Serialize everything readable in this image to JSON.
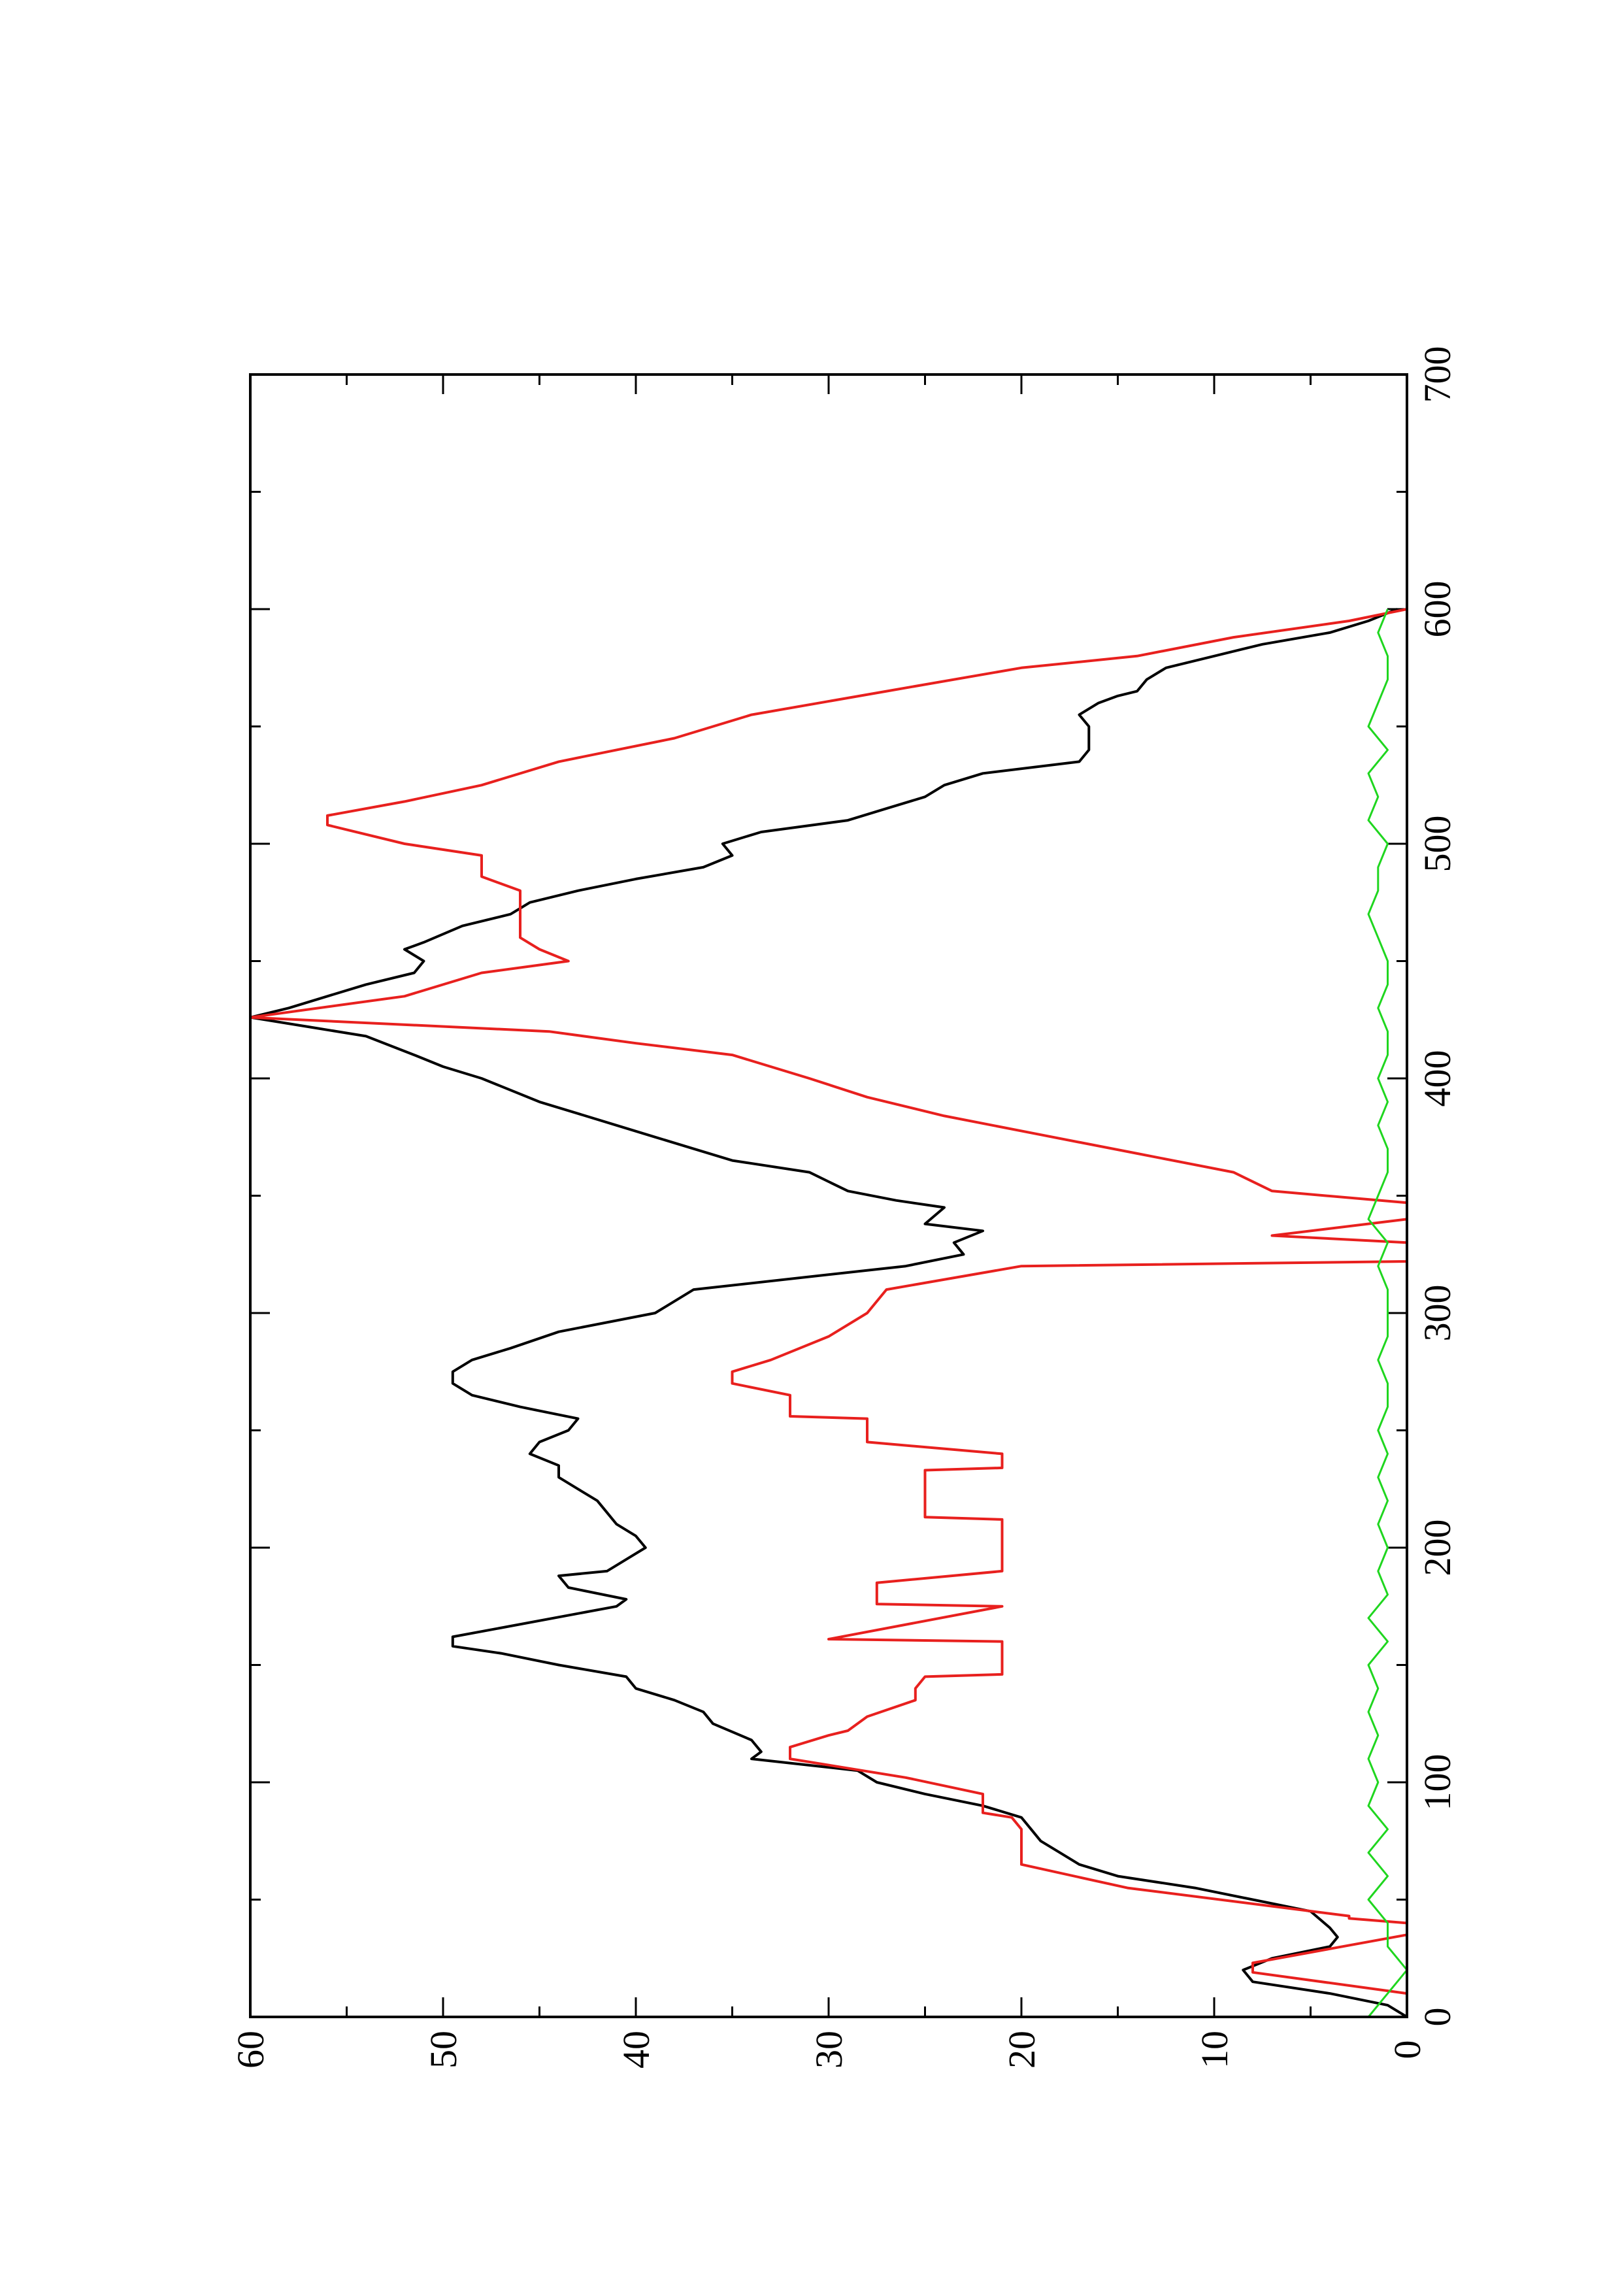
{
  "chart_data": {
    "type": "line",
    "rotated": "90deg counter-clockwise (x axis runs bottom-to-top)",
    "xlim": [
      0,
      700
    ],
    "ylim": [
      0,
      60
    ],
    "x_ticks": [
      0,
      100,
      200,
      300,
      400,
      500,
      600,
      700
    ],
    "y_ticks": [
      0,
      10,
      20,
      30,
      40,
      50,
      60
    ],
    "x_tick_labels": [
      "0",
      "100",
      "200",
      "300",
      "400",
      "500",
      "600",
      "700"
    ],
    "y_tick_labels": [
      "0",
      "10",
      "20",
      "30",
      "40",
      "50",
      "60"
    ],
    "grid": false,
    "legend": "none",
    "series": [
      {
        "color": "#000000",
        "points": [
          [
            0,
            0
          ],
          [
            5,
            1
          ],
          [
            10,
            4
          ],
          [
            15,
            8
          ],
          [
            20,
            8.5
          ],
          [
            25,
            7
          ],
          [
            30,
            4
          ],
          [
            34,
            3.6
          ],
          [
            38,
            4
          ],
          [
            45,
            5
          ],
          [
            50,
            8
          ],
          [
            55,
            11
          ],
          [
            60,
            15
          ],
          [
            65,
            17
          ],
          [
            70,
            18
          ],
          [
            75,
            19
          ],
          [
            80,
            19.5
          ],
          [
            85,
            20
          ],
          [
            90,
            22
          ],
          [
            95,
            25
          ],
          [
            100,
            27.5
          ],
          [
            105,
            28.5
          ],
          [
            110,
            34
          ],
          [
            113,
            33.5
          ],
          [
            118,
            34
          ],
          [
            125,
            36
          ],
          [
            130,
            36.5
          ],
          [
            135,
            38
          ],
          [
            140,
            40
          ],
          [
            145,
            40.5
          ],
          [
            150,
            44
          ],
          [
            155,
            47
          ],
          [
            158,
            49.5
          ],
          [
            162,
            49.5
          ],
          [
            175,
            41
          ],
          [
            178,
            40.5
          ],
          [
            183,
            43.5
          ],
          [
            188,
            44
          ],
          [
            190,
            41.5
          ],
          [
            195,
            40.5
          ],
          [
            200,
            39.5
          ],
          [
            205,
            40
          ],
          [
            210,
            41
          ],
          [
            215,
            41.5
          ],
          [
            220,
            42
          ],
          [
            225,
            43
          ],
          [
            230,
            44
          ],
          [
            235,
            44
          ],
          [
            240,
            45.5
          ],
          [
            245,
            45
          ],
          [
            250,
            43.5
          ],
          [
            255,
            43
          ],
          [
            260,
            46
          ],
          [
            265,
            48.5
          ],
          [
            270,
            49.5
          ],
          [
            275,
            49.5
          ],
          [
            280,
            48.5
          ],
          [
            285,
            46.5
          ],
          [
            292,
            44
          ],
          [
            300,
            39
          ],
          [
            310,
            37
          ],
          [
            320,
            26
          ],
          [
            325,
            23
          ],
          [
            330,
            23.5
          ],
          [
            335,
            22
          ],
          [
            338,
            25
          ],
          [
            345,
            24
          ],
          [
            348,
            26.5
          ],
          [
            352,
            29
          ],
          [
            356,
            30
          ],
          [
            360,
            31
          ],
          [
            365,
            35
          ],
          [
            370,
            37
          ],
          [
            375,
            39
          ],
          [
            380,
            41
          ],
          [
            385,
            43
          ],
          [
            390,
            45
          ],
          [
            400,
            48
          ],
          [
            405,
            50
          ],
          [
            410,
            51.5
          ],
          [
            418,
            54
          ],
          [
            422,
            57
          ],
          [
            426,
            60
          ],
          [
            430,
            58
          ],
          [
            435,
            56
          ],
          [
            440,
            54
          ],
          [
            445,
            51.5
          ],
          [
            450,
            51
          ],
          [
            455,
            52
          ],
          [
            458,
            51
          ],
          [
            465,
            49
          ],
          [
            470,
            46.5
          ],
          [
            475,
            45.5
          ],
          [
            480,
            43
          ],
          [
            485,
            40
          ],
          [
            490,
            36.5
          ],
          [
            495,
            35
          ],
          [
            500,
            35.5
          ],
          [
            505,
            33.5
          ],
          [
            510,
            29
          ],
          [
            515,
            27
          ],
          [
            520,
            25
          ],
          [
            525,
            24
          ],
          [
            530,
            22
          ],
          [
            535,
            17
          ],
          [
            540,
            16.5
          ],
          [
            545,
            16.5
          ],
          [
            550,
            16.5
          ],
          [
            555,
            17
          ],
          [
            560,
            16
          ],
          [
            563,
            15
          ],
          [
            565,
            14
          ],
          [
            570,
            13.5
          ],
          [
            575,
            12.5
          ],
          [
            580,
            10
          ],
          [
            585,
            7.5
          ],
          [
            590,
            4
          ],
          [
            595,
            2
          ],
          [
            600,
            0.5
          ]
        ]
      },
      {
        "color": "#e8201e",
        "points": [
          [
            0,
            0
          ],
          [
            10,
            0
          ],
          [
            19,
            8
          ],
          [
            23,
            8
          ],
          [
            35,
            0
          ],
          [
            40,
            0
          ],
          [
            42,
            3
          ],
          [
            43,
            3
          ],
          [
            55,
            14.5
          ],
          [
            65,
            20
          ],
          [
            80,
            20
          ],
          [
            85,
            20.5
          ],
          [
            87,
            22
          ],
          [
            95,
            22
          ],
          [
            102,
            26
          ],
          [
            110,
            32
          ],
          [
            115,
            32
          ],
          [
            120,
            30
          ],
          [
            122,
            29
          ],
          [
            128,
            28
          ],
          [
            135,
            25.5
          ],
          [
            140,
            25.5
          ],
          [
            145,
            25
          ],
          [
            146,
            21
          ],
          [
            160,
            21
          ],
          [
            161,
            30
          ],
          [
            175,
            21
          ],
          [
            176,
            27.5
          ],
          [
            185,
            27.5
          ],
          [
            190,
            21
          ],
          [
            212,
            21
          ],
          [
            213,
            25
          ],
          [
            233,
            25
          ],
          [
            234,
            21
          ],
          [
            240,
            21
          ],
          [
            245,
            28
          ],
          [
            255,
            28
          ],
          [
            256,
            32
          ],
          [
            265,
            32
          ],
          [
            270,
            35
          ],
          [
            275,
            35
          ],
          [
            280,
            33
          ],
          [
            290,
            30
          ],
          [
            300,
            28
          ],
          [
            310,
            27
          ],
          [
            320,
            20
          ],
          [
            322,
            0
          ],
          [
            330,
            0
          ],
          [
            333,
            7
          ],
          [
            340,
            0
          ],
          [
            347,
            0
          ],
          [
            352,
            7
          ],
          [
            360,
            9
          ],
          [
            368,
            14
          ],
          [
            376,
            19
          ],
          [
            384,
            24
          ],
          [
            392,
            28
          ],
          [
            400,
            31
          ],
          [
            410,
            35
          ],
          [
            415,
            40
          ],
          [
            420,
            44.5
          ],
          [
            426,
            60
          ],
          [
            435,
            52
          ],
          [
            445,
            48
          ],
          [
            450,
            43.5
          ],
          [
            455,
            45
          ],
          [
            460,
            46
          ],
          [
            465,
            46
          ],
          [
            472,
            46
          ],
          [
            480,
            46
          ],
          [
            486,
            48
          ],
          [
            495,
            48
          ],
          [
            500,
            52
          ],
          [
            508,
            56
          ],
          [
            512,
            56
          ],
          [
            518,
            52
          ],
          [
            525,
            48
          ],
          [
            535,
            44
          ],
          [
            545,
            38
          ],
          [
            555,
            34
          ],
          [
            565,
            27
          ],
          [
            575,
            20
          ],
          [
            580,
            14
          ],
          [
            588,
            9
          ],
          [
            595,
            3
          ],
          [
            600,
            0
          ]
        ]
      },
      {
        "color": "#1fd61f",
        "points": [
          [
            0,
            2
          ],
          [
            10,
            1
          ],
          [
            20,
            0
          ],
          [
            30,
            1
          ],
          [
            40,
            1
          ],
          [
            50,
            2
          ],
          [
            60,
            1
          ],
          [
            70,
            2
          ],
          [
            80,
            1
          ],
          [
            90,
            2
          ],
          [
            100,
            1.5
          ],
          [
            110,
            2
          ],
          [
            120,
            1.5
          ],
          [
            130,
            2
          ],
          [
            140,
            1.5
          ],
          [
            150,
            2
          ],
          [
            160,
            1
          ],
          [
            170,
            2
          ],
          [
            180,
            1
          ],
          [
            190,
            1.5
          ],
          [
            200,
            1
          ],
          [
            210,
            1.5
          ],
          [
            220,
            1
          ],
          [
            230,
            1.5
          ],
          [
            240,
            1
          ],
          [
            250,
            1.5
          ],
          [
            260,
            1
          ],
          [
            270,
            1
          ],
          [
            280,
            1.5
          ],
          [
            290,
            1
          ],
          [
            300,
            1
          ],
          [
            310,
            1
          ],
          [
            320,
            1.5
          ],
          [
            330,
            1
          ],
          [
            340,
            2
          ],
          [
            350,
            1.5
          ],
          [
            360,
            1
          ],
          [
            370,
            1
          ],
          [
            380,
            1.5
          ],
          [
            390,
            1
          ],
          [
            400,
            1.5
          ],
          [
            410,
            1
          ],
          [
            420,
            1
          ],
          [
            430,
            1.5
          ],
          [
            440,
            1
          ],
          [
            450,
            1
          ],
          [
            460,
            1.5
          ],
          [
            470,
            2
          ],
          [
            480,
            1.5
          ],
          [
            490,
            1.5
          ],
          [
            500,
            1
          ],
          [
            510,
            2
          ],
          [
            520,
            1.5
          ],
          [
            530,
            2
          ],
          [
            540,
            1
          ],
          [
            550,
            2
          ],
          [
            560,
            1.5
          ],
          [
            570,
            1
          ],
          [
            580,
            1
          ],
          [
            590,
            1.5
          ],
          [
            600,
            1
          ]
        ]
      }
    ]
  }
}
